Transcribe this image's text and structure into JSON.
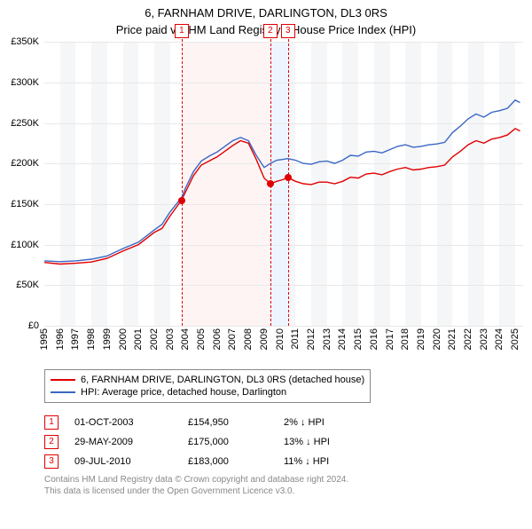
{
  "title": "6, FARNHAM DRIVE, DARLINGTON, DL3 0RS",
  "subtitle": "Price paid vs. HM Land Registry's House Price Index (HPI)",
  "chart": {
    "type": "line",
    "x_min": 1995,
    "x_max": 2025.5,
    "y_min": 0,
    "y_max": 350000,
    "y_ticks": [
      0,
      50000,
      100000,
      150000,
      200000,
      250000,
      300000,
      350000
    ],
    "y_tick_labels": [
      "£0",
      "£50K",
      "£100K",
      "£150K",
      "£200K",
      "£250K",
      "£300K",
      "£350K"
    ],
    "x_ticks": [
      1995,
      1996,
      1997,
      1998,
      1999,
      2000,
      2001,
      2002,
      2003,
      2004,
      2005,
      2006,
      2007,
      2008,
      2009,
      2010,
      2011,
      2012,
      2013,
      2014,
      2015,
      2016,
      2017,
      2018,
      2019,
      2020,
      2021,
      2022,
      2023,
      2024,
      2025
    ],
    "grid_color": "#e8e8e8",
    "plot_bg_band_color": "#f5f6f8",
    "series": [
      {
        "name": "price_paid",
        "legend": "6, FARNHAM DRIVE, DARLINGTON, DL3 0RS (detached house)",
        "color": "#e00000",
        "line_width": 1.4,
        "points": [
          [
            1995.0,
            78000
          ],
          [
            1996.0,
            76000
          ],
          [
            1997.0,
            77000
          ],
          [
            1998.0,
            78500
          ],
          [
            1999.0,
            83000
          ],
          [
            2000.0,
            92000
          ],
          [
            2001.0,
            100000
          ],
          [
            2002.0,
            115000
          ],
          [
            2002.5,
            120000
          ],
          [
            2003.0,
            135000
          ],
          [
            2003.75,
            154950
          ],
          [
            2004.0,
            165000
          ],
          [
            2004.5,
            185000
          ],
          [
            2005.0,
            198000
          ],
          [
            2005.5,
            203000
          ],
          [
            2006.0,
            208000
          ],
          [
            2006.5,
            215000
          ],
          [
            2007.0,
            222000
          ],
          [
            2007.5,
            228000
          ],
          [
            2008.0,
            225000
          ],
          [
            2008.5,
            205000
          ],
          [
            2009.0,
            182000
          ],
          [
            2009.4,
            175000
          ],
          [
            2009.8,
            178000
          ],
          [
            2010.2,
            180000
          ],
          [
            2010.5,
            183000
          ],
          [
            2011.0,
            178000
          ],
          [
            2011.5,
            175000
          ],
          [
            2012.0,
            174000
          ],
          [
            2012.5,
            177000
          ],
          [
            2013.0,
            177000
          ],
          [
            2013.5,
            175000
          ],
          [
            2014.0,
            178000
          ],
          [
            2014.5,
            183000
          ],
          [
            2015.0,
            182000
          ],
          [
            2015.5,
            187000
          ],
          [
            2016.0,
            188000
          ],
          [
            2016.5,
            186000
          ],
          [
            2017.0,
            190000
          ],
          [
            2017.5,
            193000
          ],
          [
            2018.0,
            195000
          ],
          [
            2018.5,
            192000
          ],
          [
            2019.0,
            193000
          ],
          [
            2019.5,
            195000
          ],
          [
            2020.0,
            196000
          ],
          [
            2020.5,
            198000
          ],
          [
            2021.0,
            208000
          ],
          [
            2021.5,
            215000
          ],
          [
            2022.0,
            223000
          ],
          [
            2022.5,
            228000
          ],
          [
            2023.0,
            225000
          ],
          [
            2023.5,
            230000
          ],
          [
            2024.0,
            232000
          ],
          [
            2024.5,
            235000
          ],
          [
            2025.0,
            243000
          ],
          [
            2025.3,
            240000
          ]
        ]
      },
      {
        "name": "hpi",
        "legend": "HPI: Average price, detached house, Darlington",
        "color": "#3a67c4",
        "line_width": 1.4,
        "points": [
          [
            1995.0,
            80000
          ],
          [
            1996.0,
            79000
          ],
          [
            1997.0,
            80000
          ],
          [
            1998.0,
            82000
          ],
          [
            1999.0,
            86000
          ],
          [
            2000.0,
            95000
          ],
          [
            2001.0,
            103000
          ],
          [
            2002.0,
            118000
          ],
          [
            2002.5,
            125000
          ],
          [
            2003.0,
            140000
          ],
          [
            2003.75,
            158000
          ],
          [
            2004.0,
            170000
          ],
          [
            2004.5,
            190000
          ],
          [
            2005.0,
            203000
          ],
          [
            2005.5,
            209000
          ],
          [
            2006.0,
            214000
          ],
          [
            2006.5,
            221000
          ],
          [
            2007.0,
            228000
          ],
          [
            2007.5,
            232000
          ],
          [
            2008.0,
            228000
          ],
          [
            2008.5,
            210000
          ],
          [
            2009.0,
            195000
          ],
          [
            2009.4,
            200000
          ],
          [
            2009.8,
            204000
          ],
          [
            2010.2,
            205000
          ],
          [
            2010.5,
            206000
          ],
          [
            2011.0,
            204000
          ],
          [
            2011.5,
            200000
          ],
          [
            2012.0,
            199000
          ],
          [
            2012.5,
            202000
          ],
          [
            2013.0,
            203000
          ],
          [
            2013.5,
            200000
          ],
          [
            2014.0,
            204000
          ],
          [
            2014.5,
            210000
          ],
          [
            2015.0,
            209000
          ],
          [
            2015.5,
            214000
          ],
          [
            2016.0,
            215000
          ],
          [
            2016.5,
            213000
          ],
          [
            2017.0,
            217000
          ],
          [
            2017.5,
            221000
          ],
          [
            2018.0,
            223000
          ],
          [
            2018.5,
            220000
          ],
          [
            2019.0,
            221000
          ],
          [
            2019.5,
            223000
          ],
          [
            2020.0,
            224000
          ],
          [
            2020.5,
            226000
          ],
          [
            2021.0,
            238000
          ],
          [
            2021.5,
            246000
          ],
          [
            2022.0,
            255000
          ],
          [
            2022.5,
            261000
          ],
          [
            2023.0,
            257000
          ],
          [
            2023.5,
            263000
          ],
          [
            2024.0,
            265000
          ],
          [
            2024.5,
            268000
          ],
          [
            2025.0,
            278000
          ],
          [
            2025.3,
            275000
          ]
        ]
      }
    ],
    "vbands": [
      {
        "from": 2003.75,
        "to": 2009.4,
        "color": "#fff4f4"
      },
      {
        "from": 2009.4,
        "to": 2010.52,
        "color": "#eff5ff"
      }
    ],
    "vrules": [
      {
        "id": "1",
        "at": 2003.75,
        "color": "#e00000"
      },
      {
        "id": "2",
        "at": 2009.4,
        "color": "#e00000"
      },
      {
        "id": "3",
        "at": 2010.52,
        "color": "#e00000"
      }
    ],
    "markers": [
      {
        "x": 2003.75,
        "y": 154950,
        "color": "#e00000"
      },
      {
        "x": 2009.4,
        "y": 175000,
        "color": "#e00000"
      },
      {
        "x": 2010.52,
        "y": 183000,
        "color": "#e00000"
      }
    ]
  },
  "events": [
    {
      "badge": "1",
      "badge_color": "#e00000",
      "date": "01-OCT-2003",
      "price": "£154,950",
      "diff": "2% ↓ HPI"
    },
    {
      "badge": "2",
      "badge_color": "#e00000",
      "date": "29-MAY-2009",
      "price": "£175,000",
      "diff": "13% ↓ HPI"
    },
    {
      "badge": "3",
      "badge_color": "#e00000",
      "date": "09-JUL-2010",
      "price": "£183,000",
      "diff": "11% ↓ HPI"
    }
  ],
  "credits_line1": "Contains HM Land Registry data © Crown copyright and database right 2024.",
  "credits_line2": "This data is licensed under the Open Government Licence v3.0."
}
